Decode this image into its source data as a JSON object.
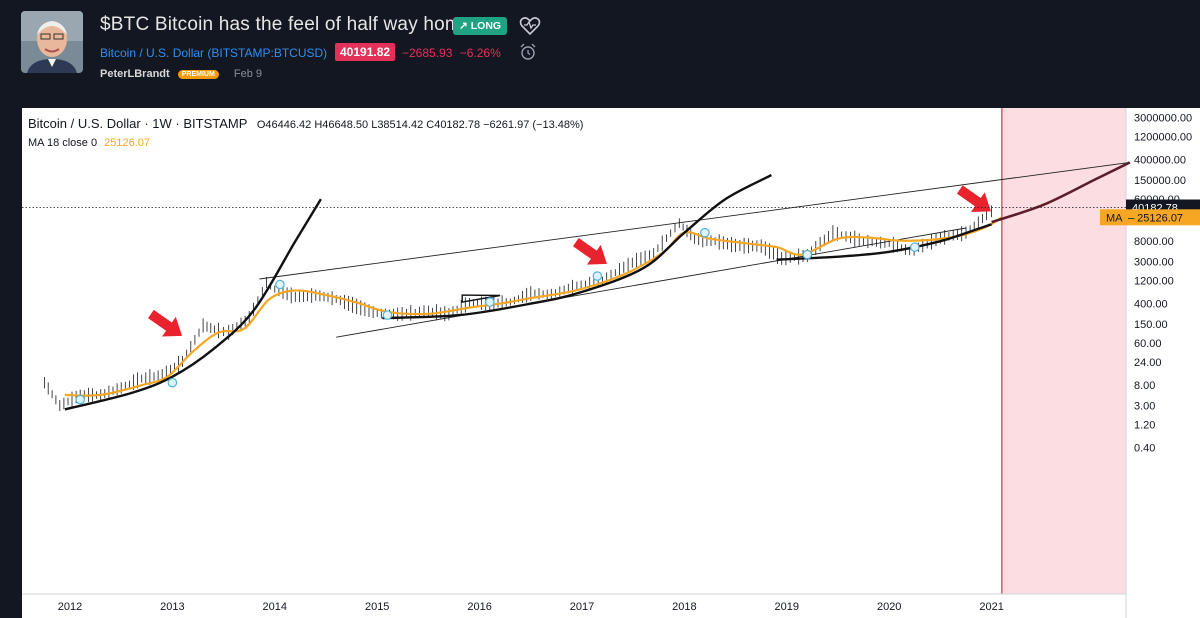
{
  "header": {
    "title": "$BTC Bitcoin has the feel of half way home",
    "badge": "LONG",
    "symbol_name": "Bitcoin / U.S. Dollar",
    "symbol_ticker": "(BITSTAMP:BTCUSD)",
    "price": "40191.82",
    "change": "−2685.93",
    "change_pct": "−6.26%",
    "author": "PeterLBrandt",
    "author_badge": "PREMIUM",
    "date": "Feb 9"
  },
  "legend": {
    "symbol": "Bitcoin / U.S. Dollar",
    "interval": "1W",
    "exchange": "BITSTAMP",
    "ohlc": "O46446.42 H46648.50 L38514.42 C40182.78 −6261.97 (−13.48%)",
    "ma_label": "MA 18 close 0",
    "ma_value": "25126.07"
  },
  "colors": {
    "up": "#26a69a",
    "down": "#ef5350",
    "price": "#131722",
    "ma": "#f5a623",
    "curve": "#111111",
    "projection": "#5c1f2a",
    "shade": "#fcdde2",
    "shade_line": "#c83a46",
    "arrow": "#e8232e",
    "badge_long": "#1fa383",
    "badge_price": "#e5305a"
  },
  "chart_data": {
    "type": "line",
    "title": "Bitcoin / U.S. Dollar · 1W · BITSTAMP",
    "yscale": "log",
    "ylabel": "",
    "xlabel": "",
    "y_ticks": [
      "3000000.00",
      "1200000.00",
      "400000.00",
      "150000.00",
      "60000.00",
      "24000.00",
      "8000.00",
      "3000.00",
      "1200.00",
      "400.00",
      "150.00",
      "60.00",
      "24.00",
      "8.00",
      "3.00",
      "1.20",
      "0.40"
    ],
    "x_ticks": [
      "2012",
      "2013",
      "2014",
      "2015",
      "2016",
      "2017",
      "2018",
      "2019",
      "2020",
      "2021"
    ],
    "last_price_label": "40182.78",
    "ma_label": "MA",
    "ma_last_label": "25126.07",
    "price_series": [
      {
        "t": 2011.75,
        "v": 9
      },
      {
        "t": 2011.9,
        "v": 3
      },
      {
        "t": 2012.1,
        "v": 5
      },
      {
        "t": 2012.3,
        "v": 5
      },
      {
        "t": 2012.5,
        "v": 7
      },
      {
        "t": 2012.7,
        "v": 11
      },
      {
        "t": 2012.9,
        "v": 13
      },
      {
        "t": 2013.1,
        "v": 25
      },
      {
        "t": 2013.3,
        "v": 140
      },
      {
        "t": 2013.45,
        "v": 110
      },
      {
        "t": 2013.55,
        "v": 100
      },
      {
        "t": 2013.75,
        "v": 200
      },
      {
        "t": 2013.92,
        "v": 1100
      },
      {
        "t": 2014.0,
        "v": 800
      },
      {
        "t": 2014.2,
        "v": 550
      },
      {
        "t": 2014.4,
        "v": 600
      },
      {
        "t": 2014.6,
        "v": 500
      },
      {
        "t": 2014.8,
        "v": 350
      },
      {
        "t": 2015.0,
        "v": 250
      },
      {
        "t": 2015.2,
        "v": 240
      },
      {
        "t": 2015.5,
        "v": 280
      },
      {
        "t": 2015.7,
        "v": 240
      },
      {
        "t": 2015.9,
        "v": 420
      },
      {
        "t": 2016.1,
        "v": 400
      },
      {
        "t": 2016.3,
        "v": 430
      },
      {
        "t": 2016.5,
        "v": 650
      },
      {
        "t": 2016.7,
        "v": 620
      },
      {
        "t": 2016.95,
        "v": 950
      },
      {
        "t": 2017.2,
        "v": 1200
      },
      {
        "t": 2017.45,
        "v": 2600
      },
      {
        "t": 2017.7,
        "v": 4500
      },
      {
        "t": 2017.95,
        "v": 19000
      },
      {
        "t": 2018.1,
        "v": 9000
      },
      {
        "t": 2018.3,
        "v": 8000
      },
      {
        "t": 2018.5,
        "v": 6500
      },
      {
        "t": 2018.75,
        "v": 6300
      },
      {
        "t": 2018.95,
        "v": 3500
      },
      {
        "t": 2019.2,
        "v": 4000
      },
      {
        "t": 2019.45,
        "v": 12000
      },
      {
        "t": 2019.75,
        "v": 8000
      },
      {
        "t": 2020.0,
        "v": 7200
      },
      {
        "t": 2020.2,
        "v": 5000
      },
      {
        "t": 2020.5,
        "v": 9200
      },
      {
        "t": 2020.75,
        "v": 12000
      },
      {
        "t": 2020.95,
        "v": 28000
      },
      {
        "t": 2021.05,
        "v": 40182.78
      }
    ],
    "ma_series": [
      {
        "t": 2011.95,
        "v": 5
      },
      {
        "t": 2012.3,
        "v": 5
      },
      {
        "t": 2012.7,
        "v": 8
      },
      {
        "t": 2012.95,
        "v": 12
      },
      {
        "t": 2013.2,
        "v": 40
      },
      {
        "t": 2013.45,
        "v": 100
      },
      {
        "t": 2013.7,
        "v": 120
      },
      {
        "t": 2013.95,
        "v": 500
      },
      {
        "t": 2014.2,
        "v": 750
      },
      {
        "t": 2014.5,
        "v": 600
      },
      {
        "t": 2014.8,
        "v": 420
      },
      {
        "t": 2015.1,
        "v": 270
      },
      {
        "t": 2015.5,
        "v": 245
      },
      {
        "t": 2015.9,
        "v": 330
      },
      {
        "t": 2016.2,
        "v": 400
      },
      {
        "t": 2016.5,
        "v": 520
      },
      {
        "t": 2016.9,
        "v": 720
      },
      {
        "t": 2017.2,
        "v": 1100
      },
      {
        "t": 2017.5,
        "v": 2000
      },
      {
        "t": 2017.8,
        "v": 4800
      },
      {
        "t": 2018.0,
        "v": 12000
      },
      {
        "t": 2018.25,
        "v": 9000
      },
      {
        "t": 2018.6,
        "v": 7200
      },
      {
        "t": 2018.9,
        "v": 6000
      },
      {
        "t": 2019.15,
        "v": 4200
      },
      {
        "t": 2019.5,
        "v": 9000
      },
      {
        "t": 2019.8,
        "v": 9500
      },
      {
        "t": 2020.1,
        "v": 8200
      },
      {
        "t": 2020.4,
        "v": 8500
      },
      {
        "t": 2020.7,
        "v": 10500
      },
      {
        "t": 2020.95,
        "v": 16000
      },
      {
        "t": 2021.1,
        "v": 25126.07
      }
    ],
    "channel_upper": [
      {
        "t": 2013.85,
        "v": 1300
      },
      {
        "t": 2022.35,
        "v": 350000
      }
    ],
    "channel_lower": [
      {
        "t": 2014.6,
        "v": 80
      },
      {
        "t": 2020.75,
        "v": 15000
      }
    ],
    "parabolic_curves": [
      [
        {
          "t": 2011.95,
          "v": 2.5
        },
        {
          "t": 2012.6,
          "v": 5.5
        },
        {
          "t": 2013.0,
          "v": 12
        },
        {
          "t": 2013.4,
          "v": 45
        },
        {
          "t": 2013.8,
          "v": 300
        },
        {
          "t": 2014.2,
          "v": 8000
        },
        {
          "t": 2014.45,
          "v": 60000
        }
      ],
      [
        {
          "t": 2015.05,
          "v": 200
        },
        {
          "t": 2015.8,
          "v": 230
        },
        {
          "t": 2016.5,
          "v": 400
        },
        {
          "t": 2017.0,
          "v": 700
        },
        {
          "t": 2017.6,
          "v": 2200
        },
        {
          "t": 2018.0,
          "v": 12000
        },
        {
          "t": 2018.4,
          "v": 60000
        },
        {
          "t": 2018.85,
          "v": 190000
        }
      ],
      [
        {
          "t": 2018.9,
          "v": 3300
        },
        {
          "t": 2019.5,
          "v": 3800
        },
        {
          "t": 2020.0,
          "v": 4800
        },
        {
          "t": 2020.5,
          "v": 8000
        },
        {
          "t": 2020.85,
          "v": 14000
        },
        {
          "t": 2021.0,
          "v": 18000
        }
      ]
    ],
    "projection_curve": [
      {
        "t": 2021.0,
        "v": 20000
      },
      {
        "t": 2021.5,
        "v": 45000
      },
      {
        "t": 2022.0,
        "v": 150000
      },
      {
        "t": 2022.35,
        "v": 350000
      }
    ],
    "triangle": [
      {
        "t": 2015.83,
        "v": 600
      },
      {
        "t": 2015.83,
        "v": 430
      },
      {
        "t": 2016.2,
        "v": 590
      }
    ],
    "highlight_range": [
      2021.1,
      2022.4
    ],
    "annotations": [
      {
        "t": 2012.95,
        "v": 140,
        "label": "arrow"
      },
      {
        "t": 2017.1,
        "v": 4400,
        "label": "arrow"
      },
      {
        "t": 2020.85,
        "v": 55000,
        "label": "arrow"
      }
    ],
    "markers": [
      {
        "t": 2013.0,
        "v": 9
      },
      {
        "t": 2014.05,
        "v": 1000
      },
      {
        "t": 2015.1,
        "v": 230
      },
      {
        "t": 2016.1,
        "v": 430
      },
      {
        "t": 2017.15,
        "v": 1500
      },
      {
        "t": 2018.2,
        "v": 12000
      },
      {
        "t": 2019.2,
        "v": 4200
      },
      {
        "t": 2020.25,
        "v": 6000
      },
      {
        "t": 2012.1,
        "v": 4
      }
    ],
    "legend_position": "top-left",
    "grid": false
  }
}
